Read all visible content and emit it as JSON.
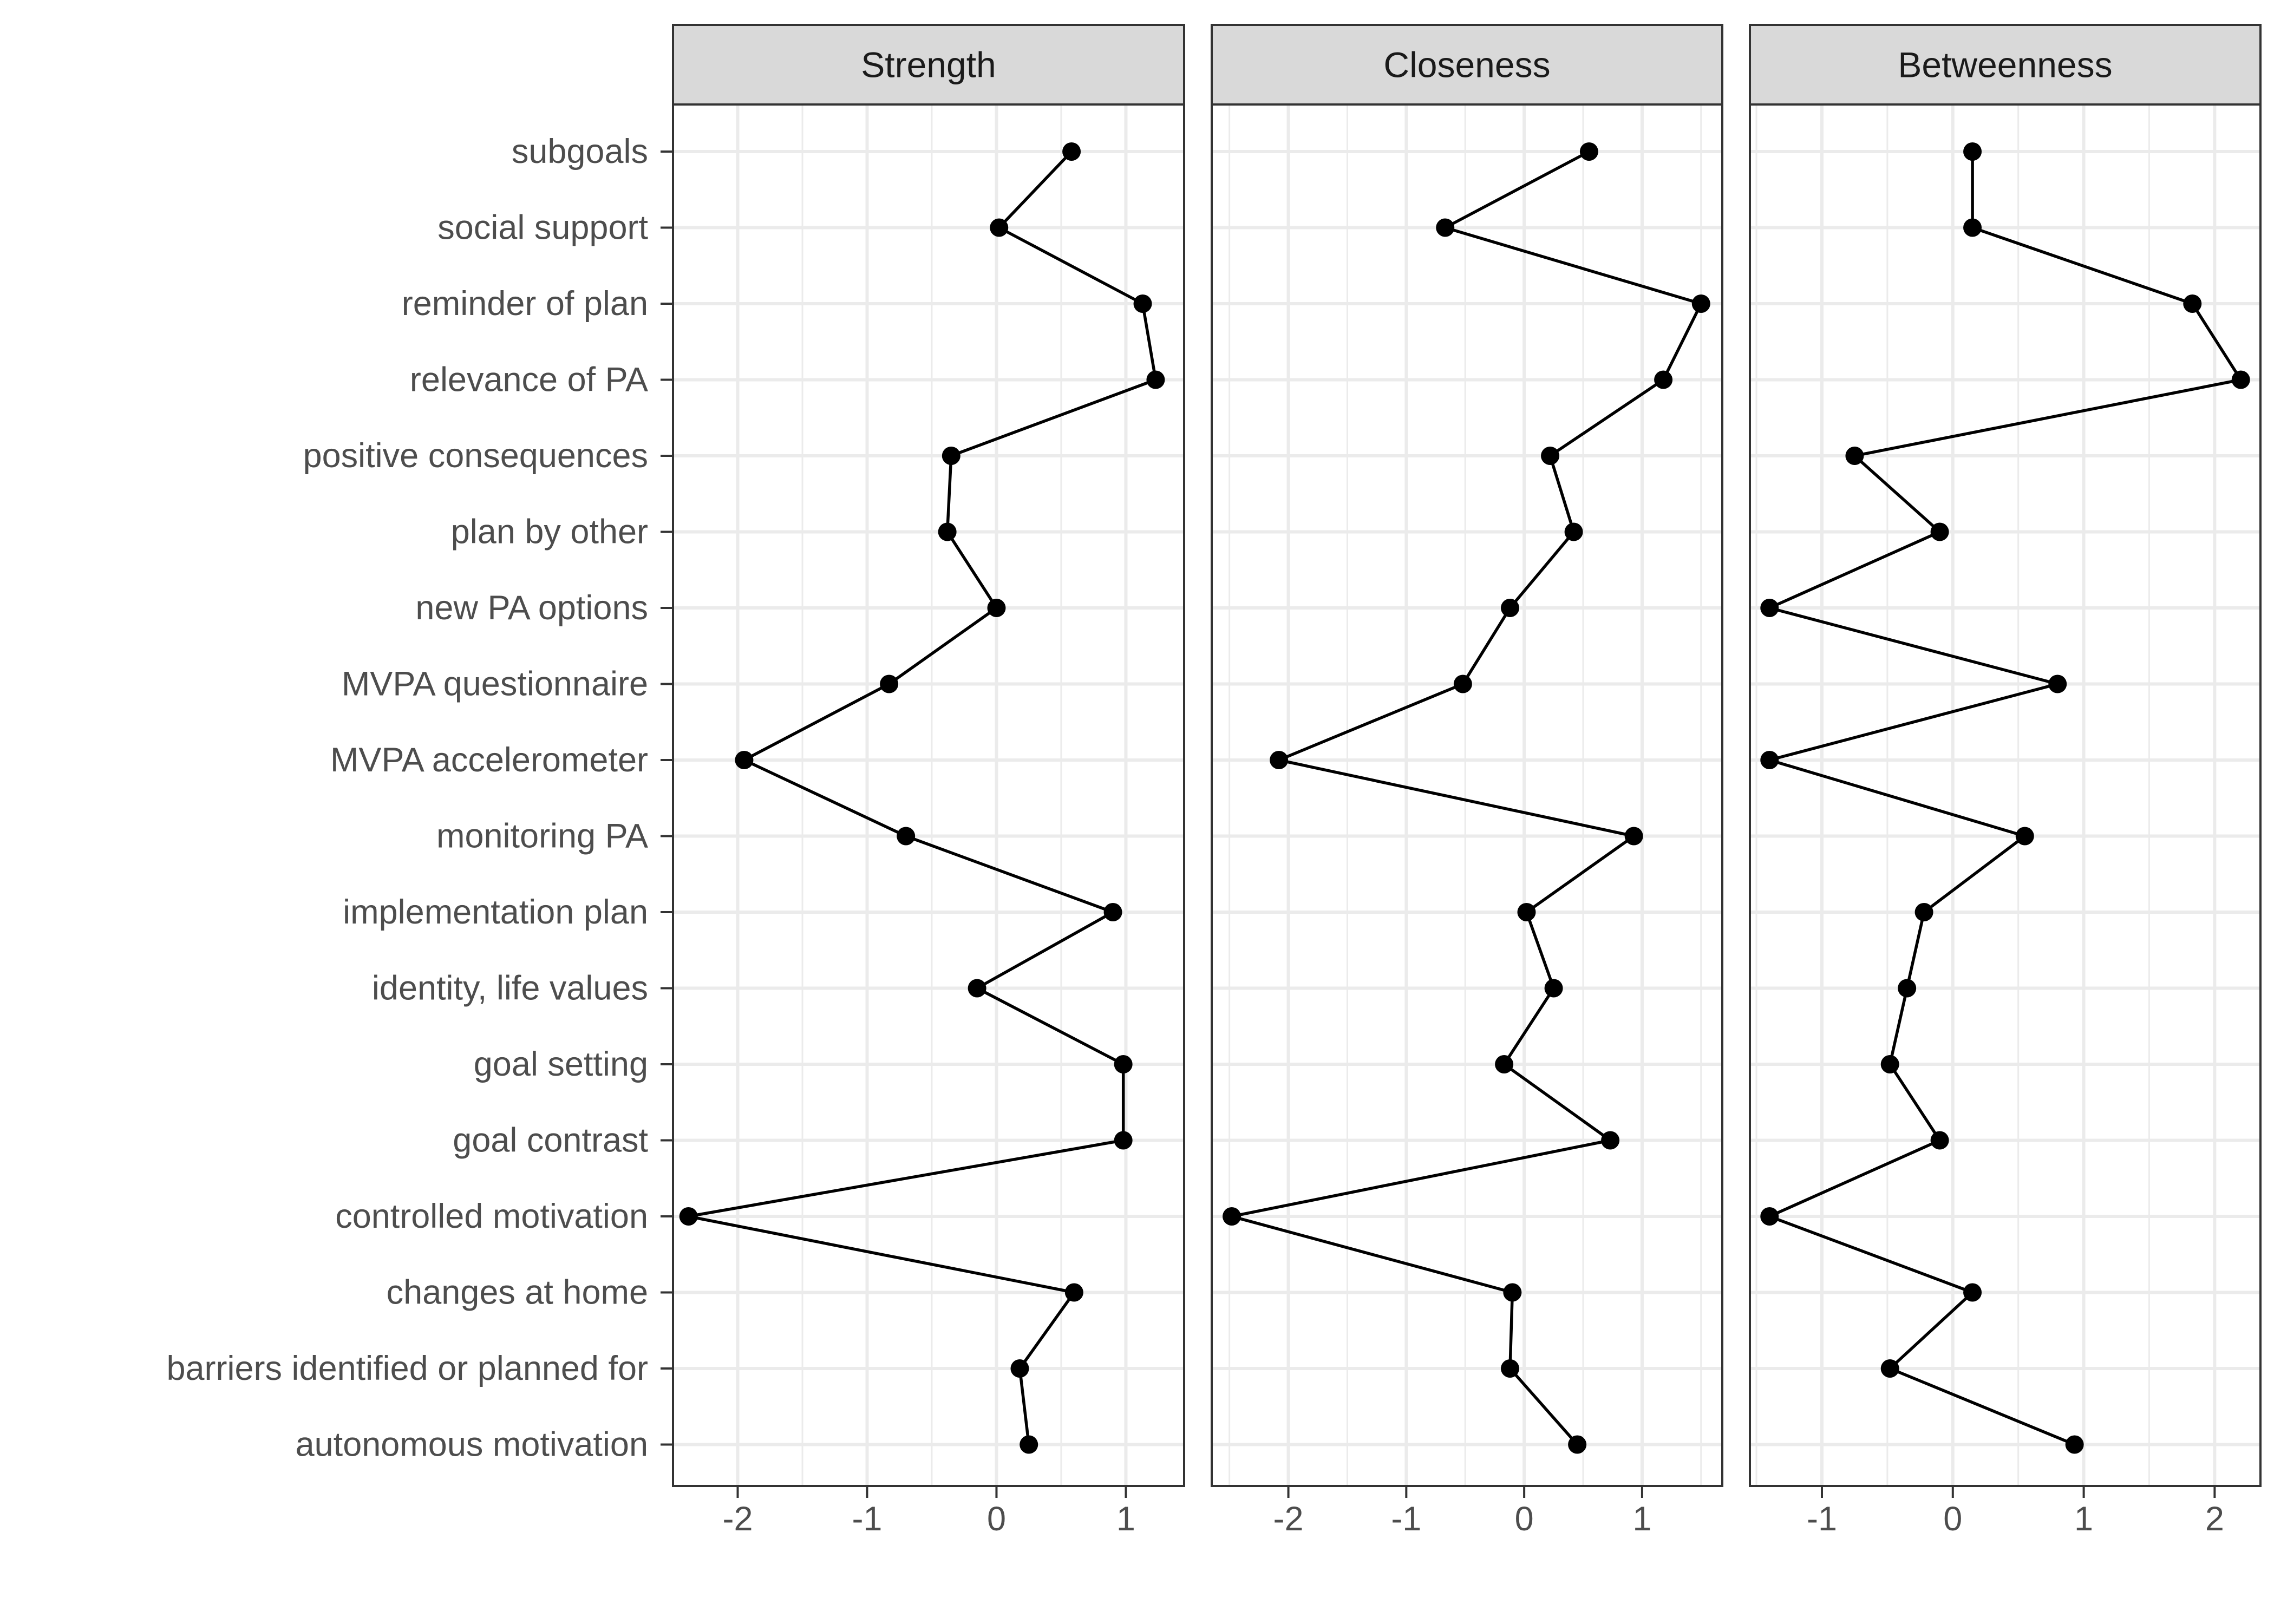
{
  "chart_data": {
    "type": "line",
    "style": {
      "line_color": "#000000",
      "point_color": "#000000",
      "strip_fill": "#d9d9d9",
      "border_color": "#333333",
      "grid_color": "#ebebeb",
      "background": "#ffffff",
      "text_color": "#4d4d4d"
    },
    "categories": [
      "subgoals",
      "social support",
      "reminder of plan",
      "relevance of PA",
      "positive consequences",
      "plan by other",
      "new PA options",
      "MVPA questionnaire",
      "MVPA accelerometer",
      "monitoring PA",
      "implementation plan",
      "identity, life values",
      "goal setting",
      "goal contrast",
      "controlled motivation",
      "changes at home",
      "barriers identified or planned for",
      "autonomous motivation"
    ],
    "grid": true,
    "panels": [
      {
        "title": "Strength",
        "xlim": [
          -2.5,
          1.45
        ],
        "ticks": [
          -2,
          -1,
          0,
          1
        ],
        "tick_labels": [
          "-2",
          "-1",
          "0",
          "1"
        ],
        "values": [
          0.58,
          0.02,
          1.13,
          1.23,
          -0.35,
          -0.38,
          0.0,
          -0.83,
          -1.95,
          -0.7,
          0.9,
          -0.15,
          0.98,
          0.98,
          -2.38,
          0.6,
          0.18,
          0.25
        ]
      },
      {
        "title": "Closeness",
        "xlim": [
          -2.65,
          1.68
        ],
        "ticks": [
          -2,
          -1,
          0,
          1
        ],
        "tick_labels": [
          "-2",
          "-1",
          "0",
          "1"
        ],
        "values": [
          0.55,
          -0.67,
          1.5,
          1.18,
          0.22,
          0.42,
          -0.12,
          -0.52,
          -2.08,
          0.93,
          0.02,
          0.25,
          -0.17,
          0.73,
          -2.48,
          -0.1,
          -0.12,
          0.45
        ]
      },
      {
        "title": "Betweenness",
        "xlim": [
          -1.55,
          2.35
        ],
        "ticks": [
          -1,
          0,
          1,
          2
        ],
        "tick_labels": [
          "-1",
          "0",
          "1",
          "2"
        ],
        "values": [
          0.15,
          0.15,
          1.83,
          2.2,
          -0.75,
          -0.1,
          -1.4,
          0.8,
          -1.4,
          0.55,
          -0.22,
          -0.35,
          -0.48,
          -0.1,
          -1.4,
          0.15,
          -0.48,
          0.93
        ]
      }
    ]
  }
}
